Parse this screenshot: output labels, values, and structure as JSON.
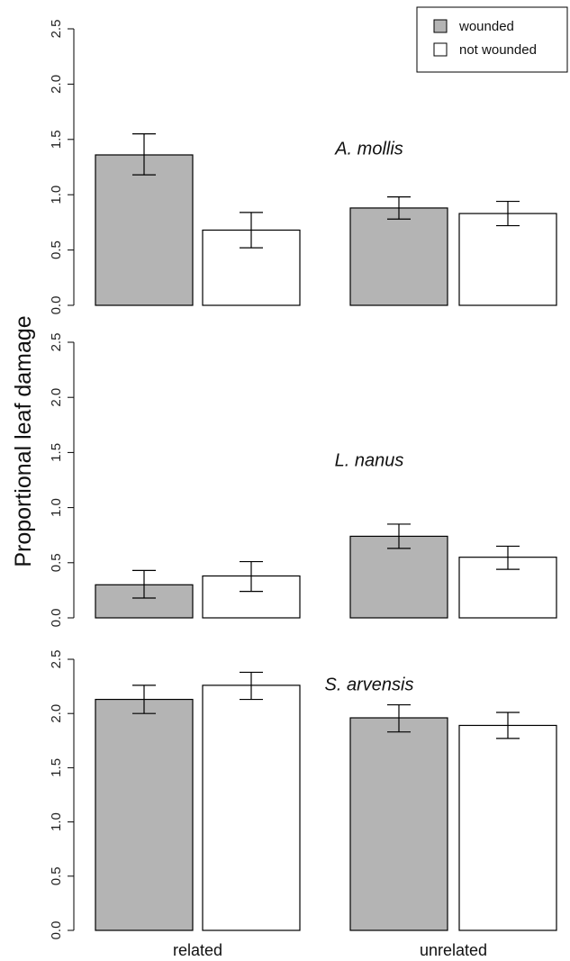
{
  "chart_data": {
    "type": "bar",
    "ylabel": "Proportional leaf damage",
    "categories": [
      "related",
      "unrelated"
    ],
    "legend": {
      "placement": "top-right",
      "entries": [
        {
          "label": "wounded",
          "color": "#b4b4b4"
        },
        {
          "label": "not wounded",
          "color": "#ffffff"
        }
      ]
    },
    "ylim": [
      0,
      2.5
    ],
    "yticks": [
      "0.0",
      "0.5",
      "1.0",
      "1.5",
      "2.0",
      "2.5"
    ],
    "panels": [
      {
        "species": "A. mollis",
        "series": [
          {
            "name": "wounded",
            "values": [
              1.36,
              0.88
            ],
            "err_low": [
              1.18,
              0.78
            ],
            "err_high": [
              1.55,
              0.98
            ]
          },
          {
            "name": "not wounded",
            "values": [
              0.68,
              0.83
            ],
            "err_low": [
              0.52,
              0.72
            ],
            "err_high": [
              0.84,
              0.94
            ]
          }
        ]
      },
      {
        "species": "L. nanus",
        "series": [
          {
            "name": "wounded",
            "values": [
              0.3,
              0.74
            ],
            "err_low": [
              0.18,
              0.63
            ],
            "err_high": [
              0.43,
              0.85
            ]
          },
          {
            "name": "not wounded",
            "values": [
              0.38,
              0.55
            ],
            "err_low": [
              0.24,
              0.44
            ],
            "err_high": [
              0.51,
              0.65
            ]
          }
        ]
      },
      {
        "species": "S. arvensis",
        "series": [
          {
            "name": "wounded",
            "values": [
              2.13,
              1.96
            ],
            "err_low": [
              2.0,
              1.83
            ],
            "err_high": [
              2.26,
              2.08
            ]
          },
          {
            "name": "not wounded",
            "values": [
              2.26,
              1.89
            ],
            "err_low": [
              2.13,
              1.77
            ],
            "err_high": [
              2.38,
              2.01
            ]
          }
        ]
      }
    ]
  }
}
